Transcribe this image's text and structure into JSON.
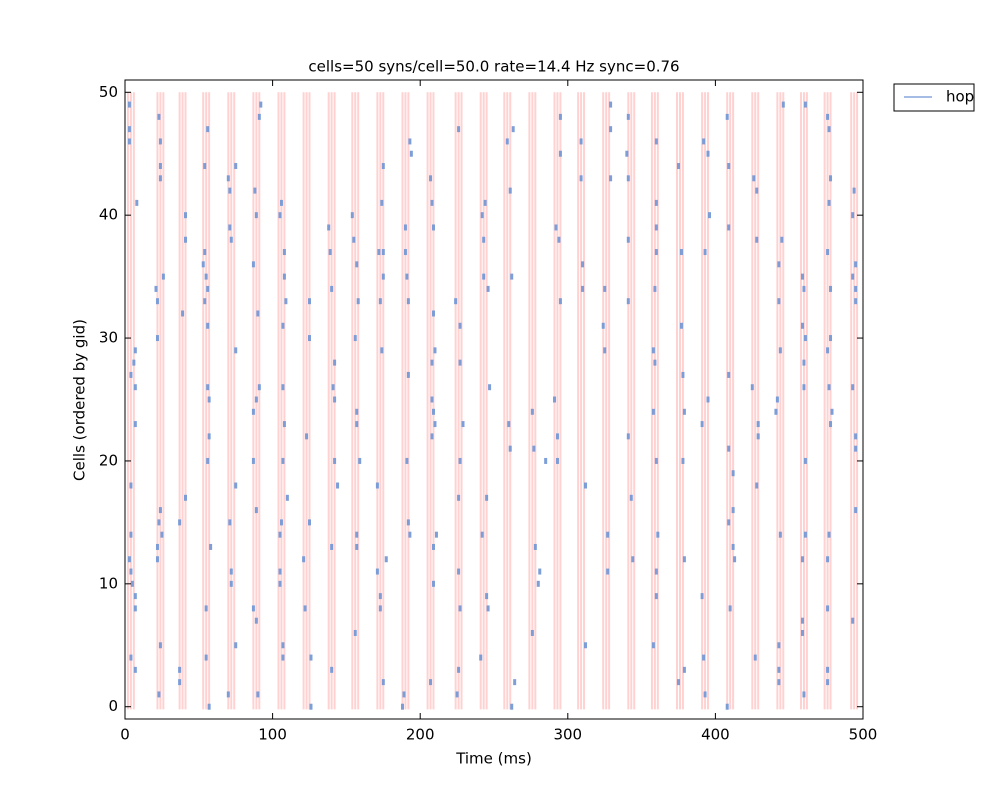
{
  "chart_data": {
    "type": "raster",
    "title": "cells=50 syns/cell=50.0 rate=14.4 Hz sync=0.76",
    "xlabel": "Time (ms)",
    "ylabel": "Cells (ordered by gid)",
    "xlim": [
      0,
      500
    ],
    "ylim": [
      -1,
      51
    ],
    "xticks": [
      0,
      100,
      200,
      300,
      400,
      500
    ],
    "yticks": [
      0,
      10,
      20,
      30,
      40,
      50
    ],
    "legend": "outside upper right",
    "vline_color": "#ff0000",
    "vlines": [
      2,
      4,
      6,
      22,
      24,
      26,
      37,
      39,
      41,
      53,
      55,
      57,
      70,
      72,
      74,
      87,
      89,
      91,
      104,
      106,
      108,
      121,
      123,
      125,
      138,
      140,
      142,
      154,
      156,
      158,
      171,
      173,
      175,
      188,
      190,
      192,
      205,
      207,
      209,
      224,
      226,
      228,
      241,
      243,
      245,
      257,
      259,
      261,
      274,
      276,
      278,
      291,
      293,
      295,
      307,
      309,
      311,
      324,
      326,
      328,
      341,
      343,
      345,
      357,
      359,
      361,
      374,
      376,
      378,
      391,
      393,
      395,
      408,
      410,
      412,
      425,
      427,
      429,
      442,
      444,
      446,
      458,
      460,
      462,
      474,
      476,
      478,
      492,
      494,
      496
    ],
    "series": [
      {
        "name": "hop",
        "color": "#6f95d4",
        "x": [
          3,
          3,
          3,
          4,
          6,
          7,
          8,
          7,
          7,
          4,
          4,
          3,
          4,
          5,
          7,
          7,
          4,
          7,
          21,
          22,
          23,
          24,
          24,
          24,
          22,
          24,
          23,
          25,
          22,
          22,
          24,
          23,
          26,
          37,
          37,
          37,
          39,
          41,
          41,
          41,
          54,
          53,
          54,
          55,
          56,
          56,
          54,
          56,
          56,
          57,
          57,
          56,
          55,
          55,
          58,
          57,
          70,
          71,
          71,
          75,
          72,
          75,
          75,
          71,
          72,
          72,
          75,
          70,
          88,
          89,
          87,
          90,
          91,
          89,
          87,
          89,
          87,
          87,
          89,
          90,
          92,
          91,
          106,
          105,
          108,
          108,
          107,
          107,
          107,
          108,
          106,
          105,
          105,
          105,
          107,
          107,
          110,
          109,
          121,
          122,
          125,
          125,
          125,
          123,
          126,
          126,
          138,
          139,
          140,
          141,
          142,
          142,
          144,
          142,
          140,
          140,
          154,
          155,
          157,
          158,
          156,
          157,
          157,
          159,
          157,
          157,
          156,
          172,
          173,
          174,
          175,
          175,
          174,
          175,
          177,
          173,
          173,
          175,
          171,
          171,
          190,
          190,
          191,
          192,
          193,
          194,
          192,
          192,
          193,
          191,
          189,
          188,
          207,
          208,
          209,
          209,
          210,
          208,
          208,
          209,
          210,
          208,
          211,
          209,
          209,
          207,
          226,
          224,
          227,
          227,
          229,
          227,
          226,
          226,
          227,
          226,
          225,
          242,
          244,
          243,
          243,
          246,
          247,
          245,
          242,
          245,
          246,
          241,
          259,
          263,
          261,
          262,
          260,
          261,
          264,
          262,
          276,
          277,
          278,
          280,
          276,
          285,
          281,
          292,
          294,
          295,
          295,
          295,
          291,
          293,
          293,
          309,
          309,
          310,
          310,
          312,
          312,
          325,
          324,
          325,
          327,
          327,
          329,
          329,
          329,
          341,
          340,
          341,
          341,
          341,
          341,
          343,
          344,
          360,
          360,
          360,
          360,
          359,
          358,
          359,
          358,
          360,
          361,
          360,
          360,
          358,
          375,
          377,
          377,
          378,
          379,
          378,
          379,
          379,
          375,
          392,
          395,
          396,
          393,
          391,
          391,
          392,
          393,
          395,
          408,
          409,
          409,
          409,
          409,
          412,
          412,
          412,
          413,
          409,
          410,
          408,
          426,
          428,
          428,
          425,
          429,
          429,
          428,
          427,
          446,
          445,
          443,
          443,
          444,
          442,
          441,
          444,
          443,
          443,
          443,
          461,
          459,
          460,
          459,
          461,
          460,
          460,
          461,
          461,
          459,
          459,
          459,
          460,
          476,
          477,
          478,
          477,
          476,
          478,
          478,
          476,
          477,
          479,
          478,
          477,
          476,
          476,
          476,
          476,
          494,
          493,
          493,
          495,
          495,
          495,
          493,
          495,
          495,
          495,
          493
        ],
        "values": [
          49,
          47,
          46,
          27,
          28,
          29,
          41,
          26,
          23,
          18,
          14,
          12,
          11,
          10,
          9,
          8,
          4,
          3,
          34,
          33,
          48,
          46,
          44,
          43,
          30,
          16,
          15,
          14,
          13,
          12,
          5,
          1,
          35,
          15,
          3,
          2,
          32,
          40,
          38,
          17,
          44,
          36,
          37,
          35,
          34,
          47,
          33,
          31,
          26,
          25,
          22,
          20,
          8,
          4,
          13,
          0,
          43,
          42,
          39,
          44,
          38,
          29,
          18,
          15,
          11,
          10,
          5,
          1,
          42,
          40,
          36,
          32,
          26,
          25,
          24,
          16,
          20,
          8,
          7,
          1,
          49,
          48,
          41,
          40,
          37,
          35,
          31,
          26,
          20,
          23,
          15,
          14,
          11,
          10,
          5,
          4,
          17,
          33,
          12,
          8,
          15,
          33,
          30,
          22,
          4,
          0,
          39,
          37,
          34,
          26,
          28,
          25,
          18,
          20,
          13,
          3,
          40,
          38,
          36,
          33,
          30,
          24,
          23,
          20,
          14,
          13,
          6,
          37,
          33,
          29,
          35,
          37,
          41,
          44,
          12,
          9,
          8,
          2,
          18,
          11,
          39,
          37,
          35,
          33,
          46,
          45,
          27,
          15,
          14,
          20,
          1,
          0,
          43,
          41,
          39,
          32,
          29,
          28,
          25,
          24,
          23,
          22,
          14,
          13,
          10,
          2,
          47,
          33,
          31,
          28,
          23,
          20,
          17,
          11,
          8,
          3,
          1,
          40,
          41,
          38,
          35,
          34,
          26,
          17,
          14,
          9,
          8,
          4,
          46,
          47,
          42,
          35,
          23,
          21,
          2,
          0,
          24,
          21,
          13,
          10,
          6,
          20,
          11,
          39,
          38,
          48,
          45,
          33,
          25,
          22,
          20,
          46,
          43,
          36,
          34,
          5,
          18,
          34,
          31,
          29,
          14,
          11,
          43,
          47,
          49,
          48,
          45,
          43,
          38,
          33,
          22,
          17,
          12,
          46,
          41,
          39,
          37,
          34,
          29,
          28,
          24,
          20,
          14,
          11,
          9,
          5,
          44,
          37,
          31,
          27,
          24,
          20,
          12,
          3,
          2,
          46,
          45,
          40,
          37,
          23,
          9,
          4,
          1,
          25,
          48,
          44,
          39,
          27,
          21,
          19,
          16,
          13,
          12,
          15,
          8,
          0,
          43,
          42,
          38,
          26,
          23,
          22,
          18,
          4,
          49,
          38,
          36,
          33,
          29,
          25,
          24,
          14,
          5,
          3,
          2,
          49,
          35,
          34,
          31,
          30,
          28,
          26,
          20,
          14,
          12,
          7,
          6,
          1,
          48,
          47,
          43,
          41,
          37,
          34,
          30,
          29,
          26,
          24,
          23,
          14,
          12,
          8,
          3,
          2,
          42,
          40,
          35,
          36,
          34,
          33,
          26,
          22,
          21,
          16,
          7
        ]
      }
    ]
  }
}
